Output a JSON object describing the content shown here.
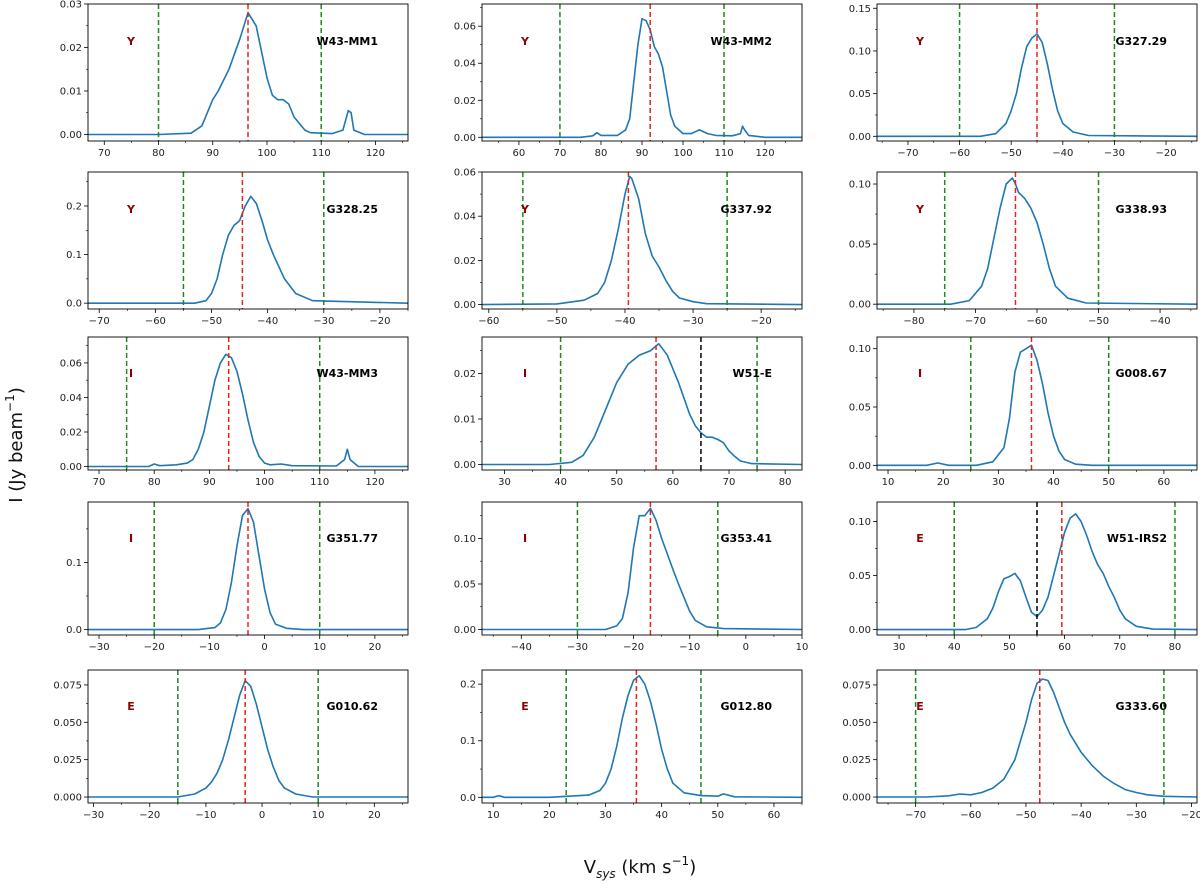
{
  "figure": {
    "ylabel": "I (Jy beam",
    "ylabel_sup": "−1",
    "ylabel_close": ")",
    "xlabel_main": "V",
    "xlabel_sub": "sys",
    "xlabel_units": " (km s",
    "xlabel_sup": "−1",
    "xlabel_close": ")"
  },
  "colors": {
    "spectrum": "#1f77b4",
    "vsys_line": "#e8231c",
    "window_line": "#1e8a1e",
    "dip_line": "#000000",
    "class_label": "#8b0000"
  },
  "chart_data": [
    {
      "type": "line",
      "name": "W43-MM1",
      "class": "Y",
      "xlim": [
        67,
        126
      ],
      "ylim": [
        -0.0015,
        0.03
      ],
      "xticks": [
        70,
        80,
        90,
        100,
        110,
        120
      ],
      "yticks": [
        0.0,
        0.01,
        0.02,
        0.03
      ],
      "ytick_labels": [
        "0.00",
        "0.01",
        "0.02",
        "0.03"
      ],
      "vsys": 96.5,
      "window": [
        80,
        110
      ],
      "dip": null,
      "x": [
        67,
        80,
        86,
        88,
        90,
        91,
        93,
        95,
        96.5,
        98,
        99,
        100,
        101,
        102,
        103,
        104,
        105,
        107,
        108,
        112,
        114,
        115,
        115.5,
        116,
        118,
        126
      ],
      "y": [
        0,
        0,
        0.0003,
        0.002,
        0.008,
        0.01,
        0.015,
        0.022,
        0.028,
        0.025,
        0.019,
        0.013,
        0.009,
        0.008,
        0.008,
        0.007,
        0.004,
        0.001,
        0.0004,
        0.0002,
        0.001,
        0.0055,
        0.005,
        0.001,
        0,
        0
      ]
    },
    {
      "type": "line",
      "name": "W43-MM2",
      "class": "Y",
      "xlim": [
        51,
        129
      ],
      "ylim": [
        -0.002,
        0.072
      ],
      "xticks": [
        50,
        60,
        70,
        80,
        90,
        100,
        110,
        120,
        130
      ],
      "yticks": [
        0.0,
        0.02,
        0.04,
        0.06
      ],
      "ytick_labels": [
        "0.00",
        "0.02",
        "0.04",
        "0.06"
      ],
      "vsys": 92,
      "window": [
        70,
        110
      ],
      "dip": null,
      "x": [
        51,
        75,
        78,
        79,
        80,
        84,
        86,
        87,
        88,
        89,
        90,
        91,
        92,
        93,
        94,
        95,
        96,
        97,
        98,
        100,
        102,
        103,
        104,
        106,
        108,
        112,
        114,
        114.5,
        115,
        116,
        120,
        129
      ],
      "y": [
        0,
        0,
        0.0008,
        0.0025,
        0.001,
        0.001,
        0.004,
        0.01,
        0.03,
        0.05,
        0.064,
        0.063,
        0.058,
        0.049,
        0.045,
        0.038,
        0.025,
        0.012,
        0.006,
        0.002,
        0.002,
        0.003,
        0.004,
        0.002,
        0.001,
        0.0008,
        0.002,
        0.006,
        0.004,
        0.001,
        0,
        0
      ]
    },
    {
      "type": "line",
      "name": "G327.29",
      "class": "Y",
      "xlim": [
        -76,
        -14
      ],
      "ylim": [
        -0.0055,
        0.155
      ],
      "xticks": [
        -70,
        -60,
        -50,
        -40,
        -30,
        -20
      ],
      "yticks": [
        0.0,
        0.05,
        0.1,
        0.15
      ],
      "ytick_labels": [
        "0.00",
        "0.05",
        "0.10",
        "0.15"
      ],
      "vsys": -45,
      "window": [
        -60,
        -30
      ],
      "dip": null,
      "x": [
        -76,
        -56,
        -53,
        -51,
        -50,
        -49,
        -48,
        -47,
        -46,
        -45,
        -44,
        -43,
        -42,
        -41,
        -40,
        -38,
        -35,
        -14
      ],
      "y": [
        0,
        0,
        0.003,
        0.015,
        0.03,
        0.05,
        0.08,
        0.105,
        0.115,
        0.12,
        0.11,
        0.085,
        0.055,
        0.03,
        0.015,
        0.005,
        0.001,
        0
      ]
    },
    {
      "type": "line",
      "name": "G328.25",
      "class": "Y",
      "xlim": [
        -72,
        -15
      ],
      "ylim": [
        -0.012,
        0.27
      ],
      "xticks": [
        -70,
        -60,
        -50,
        -40,
        -30,
        -20
      ],
      "yticks": [
        0.0,
        0.1,
        0.2
      ],
      "ytick_labels": [
        "0.0",
        "0.1",
        "0.2"
      ],
      "vsys": -44.5,
      "window": [
        -55,
        -30
      ],
      "dip": null,
      "x": [
        -72,
        -53,
        -51,
        -50,
        -49,
        -48,
        -47,
        -46,
        -45,
        -44,
        -43,
        -42,
        -41,
        -40,
        -39,
        -37,
        -35,
        -32,
        -15
      ],
      "y": [
        0,
        0,
        0.005,
        0.02,
        0.05,
        0.1,
        0.14,
        0.16,
        0.17,
        0.2,
        0.22,
        0.205,
        0.17,
        0.13,
        0.1,
        0.05,
        0.02,
        0.005,
        0
      ]
    },
    {
      "type": "line",
      "name": "G337.92",
      "class": "Y",
      "xlim": [
        -61,
        -14
      ],
      "ylim": [
        -0.002,
        0.06
      ],
      "xticks": [
        -60,
        -50,
        -40,
        -30,
        -20
      ],
      "yticks": [
        0.0,
        0.02,
        0.04,
        0.06
      ],
      "ytick_labels": [
        "0.00",
        "0.02",
        "0.04",
        "0.06"
      ],
      "vsys": -39.5,
      "window": [
        -55,
        -25
      ],
      "dip": null,
      "x": [
        -61,
        -50,
        -46,
        -44,
        -43,
        -42,
        -41,
        -40,
        -39.3,
        -39,
        -38,
        -37,
        -36,
        -35,
        -34,
        -33,
        -32,
        -30,
        -28,
        -14
      ],
      "y": [
        0,
        0.0003,
        0.002,
        0.005,
        0.01,
        0.02,
        0.034,
        0.05,
        0.058,
        0.057,
        0.048,
        0.032,
        0.022,
        0.017,
        0.011,
        0.006,
        0.003,
        0.0013,
        0.0004,
        0
      ]
    },
    {
      "type": "line",
      "name": "G338.93",
      "class": "Y",
      "xlim": [
        -86,
        -34
      ],
      "ylim": [
        -0.004,
        0.11
      ],
      "xticks": [
        -80,
        -70,
        -60,
        -50,
        -40
      ],
      "yticks": [
        0.0,
        0.05,
        0.1
      ],
      "ytick_labels": [
        "0.00",
        "0.05",
        "0.10"
      ],
      "vsys": -63.5,
      "window": [
        -75,
        -50
      ],
      "dip": null,
      "x": [
        -86,
        -74,
        -71,
        -69,
        -68,
        -67,
        -66,
        -65,
        -64,
        -63.5,
        -63,
        -62,
        -61,
        -60,
        -59,
        -58,
        -57,
        -55,
        -52,
        -34
      ],
      "y": [
        0,
        0,
        0.003,
        0.015,
        0.03,
        0.055,
        0.08,
        0.1,
        0.105,
        0.1,
        0.093,
        0.088,
        0.08,
        0.068,
        0.05,
        0.03,
        0.015,
        0.005,
        0.001,
        0
      ]
    },
    {
      "type": "line",
      "name": "W43-MM3",
      "class": "I",
      "xlim": [
        68,
        126
      ],
      "ylim": [
        -0.002,
        0.075
      ],
      "xticks": [
        70,
        80,
        90,
        100,
        110,
        120
      ],
      "yticks": [
        0.0,
        0.02,
        0.04,
        0.06
      ],
      "ytick_labels": [
        "0.00",
        "0.02",
        "0.04",
        "0.06"
      ],
      "vsys": 93.5,
      "window": [
        75,
        110
      ],
      "dip": null,
      "x": [
        68,
        79,
        80,
        81,
        84,
        86,
        87,
        88,
        89,
        90,
        91,
        92,
        93,
        94,
        95,
        96,
        97,
        98,
        99,
        100,
        101,
        103,
        105,
        113,
        114.5,
        115,
        115.5,
        117,
        126
      ],
      "y": [
        0,
        0,
        0.0015,
        0.0005,
        0.001,
        0.002,
        0.004,
        0.01,
        0.02,
        0.035,
        0.05,
        0.06,
        0.065,
        0.063,
        0.055,
        0.042,
        0.027,
        0.014,
        0.006,
        0.002,
        0.001,
        0.0015,
        0.0005,
        0.0003,
        0.004,
        0.01,
        0.004,
        0,
        0
      ]
    },
    {
      "type": "line",
      "name": "W51-E",
      "class": "I",
      "xlim": [
        26,
        83
      ],
      "ylim": [
        -0.0012,
        0.028
      ],
      "xticks": [
        30,
        40,
        50,
        60,
        70,
        80
      ],
      "yticks": [
        0.0,
        0.01,
        0.02
      ],
      "ytick_labels": [
        "0.00",
        "0.01",
        "0.02"
      ],
      "vsys": 57,
      "window": [
        40,
        75
      ],
      "dip": 65,
      "x": [
        26,
        38,
        42,
        44,
        46,
        48,
        50,
        52,
        54,
        56,
        57.5,
        59,
        61,
        63,
        64,
        65,
        66,
        67,
        68,
        69,
        70,
        71,
        72,
        74,
        83
      ],
      "y": [
        0,
        0,
        0.0005,
        0.002,
        0.006,
        0.012,
        0.018,
        0.022,
        0.024,
        0.025,
        0.0265,
        0.024,
        0.018,
        0.011,
        0.0085,
        0.007,
        0.006,
        0.006,
        0.0055,
        0.0048,
        0.003,
        0.0018,
        0.0008,
        0.0002,
        0
      ]
    },
    {
      "type": "line",
      "name": "G008.67",
      "class": "I",
      "xlim": [
        8,
        66
      ],
      "ylim": [
        -0.004,
        0.11
      ],
      "xticks": [
        10,
        20,
        30,
        40,
        50,
        60
      ],
      "yticks": [
        0.0,
        0.05,
        0.1
      ],
      "ytick_labels": [
        "0.00",
        "0.05",
        "0.10"
      ],
      "vsys": 36,
      "window": [
        25,
        50
      ],
      "dip": null,
      "x": [
        8,
        17,
        19,
        21,
        26,
        29,
        31,
        32,
        33,
        34,
        35,
        36,
        37,
        38,
        39,
        40,
        41,
        42,
        44,
        47,
        66
      ],
      "y": [
        0,
        0,
        0.002,
        0,
        0,
        0.003,
        0.015,
        0.04,
        0.08,
        0.097,
        0.1,
        0.103,
        0.09,
        0.07,
        0.045,
        0.025,
        0.012,
        0.005,
        0.001,
        0,
        0
      ]
    },
    {
      "type": "line",
      "name": "G351.77",
      "class": "I",
      "xlim": [
        -32,
        26
      ],
      "ylim": [
        -0.008,
        0.19
      ],
      "xticks": [
        -30,
        -20,
        -10,
        0,
        10,
        20
      ],
      "yticks": [
        0.0,
        0.1
      ],
      "ytick_labels": [
        "0.0",
        "0.1"
      ],
      "vsys": -3,
      "window": [
        -20,
        10
      ],
      "dip": null,
      "x": [
        -32,
        -12,
        -9,
        -8,
        -7,
        -6,
        -5,
        -4,
        -3,
        -2,
        -1,
        0,
        1,
        2,
        4,
        7,
        26
      ],
      "y": [
        0,
        0,
        0.003,
        0.01,
        0.03,
        0.07,
        0.125,
        0.17,
        0.18,
        0.16,
        0.11,
        0.06,
        0.025,
        0.008,
        0.002,
        0,
        0
      ]
    },
    {
      "type": "line",
      "name": "G353.41",
      "class": "I",
      "xlim": [
        -47,
        10
      ],
      "ylim": [
        -0.006,
        0.14
      ],
      "xticks": [
        -40,
        -30,
        -20,
        -10,
        0,
        10
      ],
      "yticks": [
        0.0,
        0.05,
        0.1
      ],
      "ytick_labels": [
        "0.00",
        "0.05",
        "0.10"
      ],
      "vsys": -17,
      "window": [
        -30,
        -5
      ],
      "dip": null,
      "x": [
        -47,
        -25,
        -23,
        -22,
        -21,
        -20,
        -19,
        -18,
        -17,
        -16,
        -15,
        -14,
        -13,
        -12,
        -11,
        -10,
        -9,
        -7,
        -4,
        10
      ],
      "y": [
        0,
        0,
        0.004,
        0.012,
        0.04,
        0.09,
        0.125,
        0.125,
        0.133,
        0.12,
        0.1,
        0.083,
        0.066,
        0.05,
        0.035,
        0.02,
        0.01,
        0.003,
        0.001,
        0
      ]
    },
    {
      "type": "line",
      "name": "W51-IRS2",
      "class": "E",
      "xlim": [
        26,
        84
      ],
      "ylim": [
        -0.005,
        0.118
      ],
      "xticks": [
        30,
        40,
        50,
        60,
        70,
        80
      ],
      "yticks": [
        0.0,
        0.05,
        0.1
      ],
      "ytick_labels": [
        "0.00",
        "0.05",
        "0.10"
      ],
      "vsys": 59.5,
      "window": [
        40,
        80
      ],
      "dip": 55,
      "x": [
        26,
        42,
        44,
        46,
        47,
        48,
        49,
        50,
        51,
        52,
        53,
        54,
        55,
        56,
        57,
        58,
        59,
        60,
        61,
        62,
        63,
        64,
        65,
        66,
        67,
        68,
        69,
        70,
        71,
        73,
        76,
        84
      ],
      "y": [
        0,
        0,
        0.002,
        0.01,
        0.02,
        0.035,
        0.047,
        0.049,
        0.052,
        0.045,
        0.03,
        0.016,
        0.012,
        0.018,
        0.03,
        0.05,
        0.07,
        0.09,
        0.103,
        0.107,
        0.1,
        0.087,
        0.072,
        0.06,
        0.052,
        0.04,
        0.03,
        0.018,
        0.01,
        0.003,
        0.0005,
        0
      ]
    },
    {
      "type": "line",
      "name": "G010.62",
      "class": "E",
      "xlim": [
        -31,
        26
      ],
      "ylim": [
        -0.004,
        0.085
      ],
      "xticks": [
        -30,
        -20,
        -10,
        0,
        10,
        20
      ],
      "yticks": [
        0.0,
        0.025,
        0.05,
        0.075
      ],
      "ytick_labels": [
        "0.000",
        "0.025",
        "0.050",
        "0.075"
      ],
      "vsys": -3,
      "window": [
        -15,
        10
      ],
      "dip": null,
      "x": [
        -31,
        -15,
        -12,
        -10,
        -9,
        -8,
        -7,
        -6,
        -5,
        -4,
        -3,
        -2,
        -1,
        0,
        1,
        2,
        3,
        4,
        6,
        9,
        26
      ],
      "y": [
        0,
        0,
        0.002,
        0.006,
        0.01,
        0.016,
        0.025,
        0.038,
        0.053,
        0.068,
        0.078,
        0.074,
        0.062,
        0.047,
        0.032,
        0.02,
        0.011,
        0.006,
        0.002,
        0,
        0
      ]
    },
    {
      "type": "line",
      "name": "G012.80",
      "class": "E",
      "xlim": [
        8,
        65
      ],
      "ylim": [
        -0.01,
        0.225
      ],
      "xticks": [
        10,
        20,
        30,
        40,
        50,
        60
      ],
      "yticks": [
        0.0,
        0.1,
        0.2
      ],
      "ytick_labels": [
        "0.0",
        "0.1",
        "0.2"
      ],
      "vsys": 35.5,
      "window": [
        23,
        47
      ],
      "dip": null,
      "x": [
        8,
        10,
        11,
        12,
        20,
        27,
        29,
        30,
        31,
        32,
        33,
        34,
        35,
        36,
        37,
        38,
        39,
        40,
        41,
        42,
        44,
        47,
        50,
        51,
        53,
        65
      ],
      "y": [
        0,
        0,
        0.003,
        0,
        0,
        0.004,
        0.012,
        0.025,
        0.05,
        0.09,
        0.14,
        0.18,
        0.207,
        0.215,
        0.2,
        0.17,
        0.13,
        0.085,
        0.05,
        0.025,
        0.008,
        0.003,
        0.002,
        0.006,
        0.001,
        0
      ]
    },
    {
      "type": "line",
      "name": "G333.60",
      "class": "E",
      "xlim": [
        -77,
        -19
      ],
      "ylim": [
        -0.004,
        0.085
      ],
      "xticks": [
        -70,
        -60,
        -50,
        -40,
        -30,
        -20
      ],
      "yticks": [
        0.0,
        0.025,
        0.05,
        0.075
      ],
      "ytick_labels": [
        "0.000",
        "0.025",
        "0.050",
        "0.075"
      ],
      "vsys": -47.5,
      "window": [
        -70,
        -25
      ],
      "dip": null,
      "x": [
        -77,
        -68,
        -64,
        -62,
        -60,
        -58,
        -56,
        -54,
        -52,
        -50,
        -49,
        -48,
        -47,
        -46,
        -45,
        -44,
        -43,
        -42,
        -40,
        -38,
        -36,
        -34,
        -32,
        -30,
        -28,
        -25,
        -19
      ],
      "y": [
        0,
        0,
        0.0008,
        0.002,
        0.0015,
        0.003,
        0.006,
        0.012,
        0.025,
        0.05,
        0.065,
        0.076,
        0.079,
        0.078,
        0.07,
        0.06,
        0.05,
        0.042,
        0.03,
        0.021,
        0.014,
        0.009,
        0.005,
        0.003,
        0.0015,
        0.0005,
        0
      ]
    }
  ]
}
